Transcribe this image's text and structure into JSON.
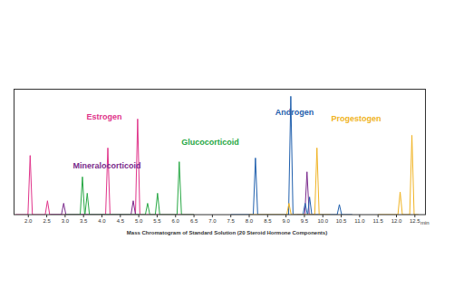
{
  "chart_data": {
    "type": "line",
    "title": "Mass Chromatogram of Standard Solution (20 Steroid Hormone Components)",
    "x_label": "min",
    "xlim": [
      1.6,
      12.8
    ],
    "ylim": [
      0,
      100
    ],
    "xticks": [
      {
        "value": 2,
        "label": "2.0"
      },
      2.5,
      {
        "value": 3,
        "label": "3.0"
      },
      3.5,
      {
        "value": 4,
        "label": "4.0"
      },
      4.5,
      {
        "value": 5,
        "label": "5.0"
      },
      5.5,
      {
        "value": 6,
        "label": "6.0"
      },
      6.5,
      {
        "value": 7,
        "label": "7.0"
      },
      7.5,
      {
        "value": 8,
        "label": "8.0"
      },
      8.5,
      {
        "value": 9,
        "label": "9.0"
      },
      9.5,
      {
        "value": 10,
        "label": "10.0"
      },
      10.5,
      {
        "value": 11,
        "label": "11.0"
      },
      11.5,
      {
        "value": 12,
        "label": "12.0"
      },
      12.5
    ],
    "tick_labels": "x",
    "grid": false,
    "series": [
      {
        "name": "Estrogen",
        "color": "#e0338a",
        "x": [
          1.65,
          1.99,
          2.05,
          2.11,
          2.46,
          2.52,
          2.58,
          4.1,
          4.16,
          4.22,
          4.91,
          4.97,
          5.03,
          6.5
        ],
        "values": [
          0,
          0,
          47,
          0,
          0,
          11,
          0,
          0,
          53,
          0,
          0,
          76,
          0,
          0
        ]
      },
      {
        "name": "Mineralocorticoid",
        "color": "#7a2a8c",
        "x": [
          2.6,
          2.9,
          2.96,
          3.02,
          4.79,
          4.85,
          4.91,
          5.0,
          7.0,
          9.3,
          9.51,
          9.57,
          9.63,
          9.8
        ],
        "values": [
          0,
          0,
          9,
          0,
          0,
          11,
          0,
          0,
          null,
          0,
          0,
          34,
          0,
          0
        ]
      },
      {
        "name": "Glucocorticoid",
        "color": "#27a844",
        "x": [
          3.0,
          3.41,
          3.47,
          3.53,
          3.54,
          3.6,
          3.66,
          5.18,
          5.24,
          5.3,
          5.45,
          5.51,
          5.57,
          6.04,
          6.1,
          6.16,
          6.5
        ],
        "values": [
          0,
          0,
          30,
          0,
          0,
          17,
          0,
          0,
          9,
          0,
          0,
          17,
          0,
          0,
          42,
          0,
          0
        ]
      },
      {
        "name": "Androgen",
        "color": "#1f5fad",
        "x": [
          7.5,
          8.11,
          8.17,
          8.23,
          9.07,
          9.13,
          9.19,
          9.46,
          9.52,
          9.58,
          9.59,
          9.64,
          9.7,
          10.39,
          10.45,
          10.51,
          10.8
        ],
        "values": [
          0,
          0,
          45,
          0,
          0,
          94,
          0,
          0,
          9,
          0,
          0,
          14,
          0,
          0,
          8,
          0,
          0
        ]
      },
      {
        "name": "Progestogen",
        "color": "#f0b323",
        "x": [
          8.0,
          9.02,
          9.08,
          9.14,
          9.78,
          9.84,
          9.9,
          10.2,
          11.0,
          11.5,
          12.04,
          12.1,
          12.16,
          12.36,
          12.42,
          12.48,
          12.6
        ],
        "values": [
          0,
          0,
          9,
          0,
          0,
          53,
          0,
          0,
          null,
          0,
          0,
          18,
          0,
          0,
          63,
          0,
          0
        ]
      }
    ]
  }
}
